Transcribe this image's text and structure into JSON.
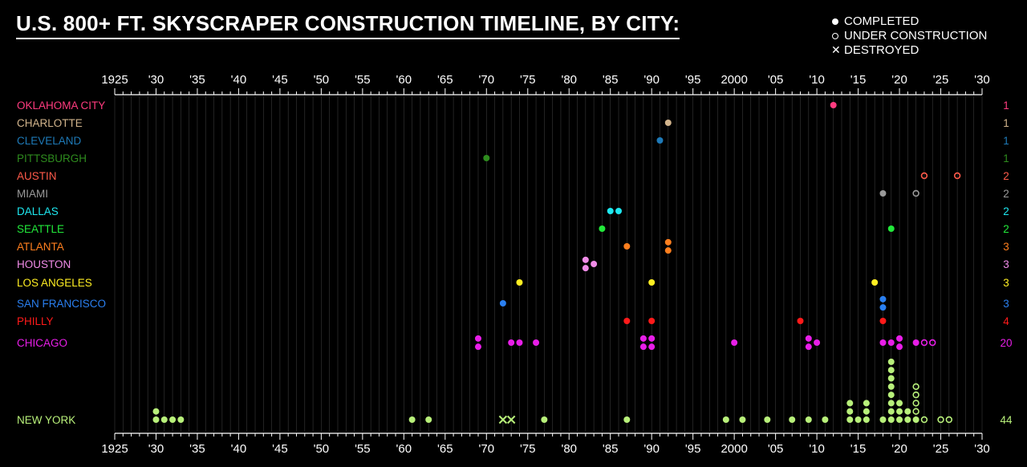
{
  "title": "U.S. 800+ FT. SKYSCRAPER CONSTRUCTION TIMELINE, BY CITY:",
  "legend": {
    "completed": "COMPLETED",
    "under_construction": "UNDER CONSTRUCTION",
    "destroyed": "DESTROYED"
  },
  "colors": {
    "background": "#000000",
    "axis": "#ffffff",
    "grid": "#3a3a3a"
  },
  "chart_data": {
    "type": "scatter",
    "xlim": [
      1925,
      2030
    ],
    "tick_labels": [
      "1925",
      "'30",
      "'35",
      "'40",
      "'45",
      "'50",
      "'55",
      "'60",
      "'65",
      "'70",
      "'75",
      "'80",
      "'85",
      "'90",
      "'95",
      "2000",
      "'05",
      "'10",
      "'15",
      "'20",
      "'25",
      "'30"
    ],
    "grid": true,
    "series": [
      {
        "name": "OKLAHOMA CITY",
        "count": "1",
        "color": "#ff3b7f",
        "completed": [
          2012
        ],
        "under_construction": [],
        "destroyed": []
      },
      {
        "name": "CHARLOTTE",
        "count": "1",
        "color": "#d2b48c",
        "completed": [
          1992
        ],
        "under_construction": [],
        "destroyed": []
      },
      {
        "name": "CLEVELAND",
        "count": "1",
        "color": "#1e7ab8",
        "completed": [
          1991
        ],
        "under_construction": [],
        "destroyed": []
      },
      {
        "name": "PITTSBURGH",
        "count": "1",
        "color": "#2e8b1e",
        "completed": [
          1970
        ],
        "under_construction": [],
        "destroyed": []
      },
      {
        "name": "AUSTIN",
        "count": "2",
        "color": "#ff5a4a",
        "completed": [],
        "under_construction": [
          2023,
          2027
        ],
        "destroyed": []
      },
      {
        "name": "MIAMI",
        "count": "2",
        "color": "#9a9a9a",
        "completed": [
          2018
        ],
        "under_construction": [
          2022
        ],
        "destroyed": []
      },
      {
        "name": "DALLAS",
        "count": "2",
        "color": "#1ee8f0",
        "completed": [
          1985,
          1986
        ],
        "under_construction": [],
        "destroyed": []
      },
      {
        "name": "SEATTLE",
        "count": "2",
        "color": "#22e83a",
        "completed": [
          1984,
          2019
        ],
        "under_construction": [],
        "destroyed": []
      },
      {
        "name": "ATLANTA",
        "count": "3",
        "color": "#ff7f1e",
        "completed": [
          1987,
          1992,
          1992
        ],
        "under_construction": [],
        "destroyed": []
      },
      {
        "name": "HOUSTON",
        "count": "3",
        "color": "#f08ce8",
        "completed": [
          1982,
          1982,
          1983
        ],
        "under_construction": [],
        "destroyed": []
      },
      {
        "name": "LOS ANGELES",
        "count": "3",
        "color": "#ffee22",
        "completed": [
          1974,
          1990,
          2017
        ],
        "under_construction": [],
        "destroyed": []
      },
      {
        "name": "SAN FRANCISCO",
        "count": "3",
        "color": "#2a7ff0",
        "completed": [
          1972,
          2018,
          2018
        ],
        "under_construction": [],
        "destroyed": []
      },
      {
        "name": "PHILLY",
        "count": "4",
        "color": "#ff1a1a",
        "completed": [
          1987,
          1990,
          2008,
          2018
        ],
        "under_construction": [],
        "destroyed": []
      },
      {
        "name": "CHICAGO",
        "count": "20",
        "color": "#e81ee8",
        "completed": [
          1969,
          1969,
          1973,
          1974,
          1976,
          1989,
          1989,
          1990,
          1990,
          2000,
          2009,
          2009,
          2010,
          2018,
          2019,
          2020,
          2020,
          2022
        ],
        "under_construction": [
          2023,
          2024
        ],
        "destroyed": []
      },
      {
        "name": "NEW YORK",
        "count": "44",
        "color": "#b8f07a",
        "completed": [
          1930,
          1930,
          1931,
          1932,
          1933,
          1961,
          1963,
          1977,
          1987,
          1999,
          2001,
          2004,
          2007,
          2009,
          2011,
          2014,
          2014,
          2014,
          2015,
          2016,
          2016,
          2016,
          2018,
          2019,
          2019,
          2019,
          2019,
          2019,
          2019,
          2019,
          2019,
          2020,
          2020,
          2020,
          2021,
          2021,
          2022
        ],
        "under_construction": [
          2022,
          2022,
          2022,
          2022,
          2023,
          2025,
          2026
        ],
        "destroyed": [
          1972,
          1973
        ]
      }
    ]
  }
}
